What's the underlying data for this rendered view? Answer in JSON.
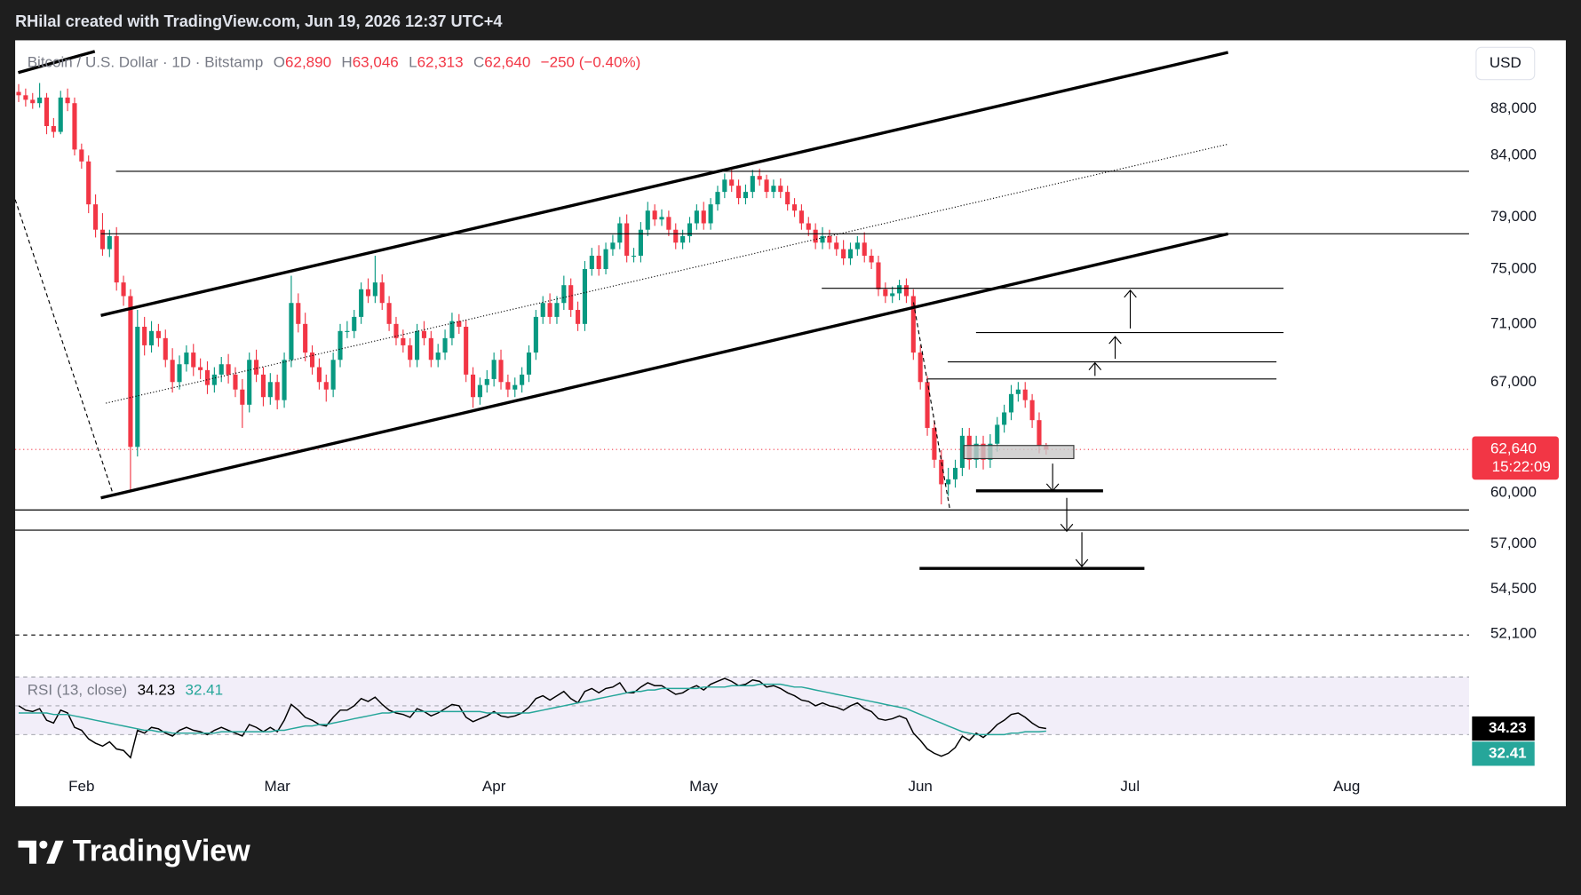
{
  "header": {
    "text": "RHilal created with TradingView.com, Jun 19, 2026 12:37 UTC+4"
  },
  "toolbar": {
    "currency": "USD"
  },
  "footer": {
    "brand": "TradingView"
  },
  "chart_data": [
    {
      "type": "candlestick",
      "title": "Bitcoin / U.S. Dollar · 1D · Bitstamp",
      "legend": [
        {
          "label": "O",
          "value": "62,890"
        },
        {
          "label": "H",
          "value": "63,046"
        },
        {
          "label": "L",
          "value": "62,313"
        },
        {
          "label": "C",
          "value": "62,640"
        }
      ],
      "change": "−250 (−0.40%)",
      "last_price_label": "62,640",
      "countdown": "15:22:09",
      "up_color": "#089981",
      "down_color": "#f23645",
      "log_scale": true,
      "xlim": [
        -0.5,
        207.5
      ],
      "xticks": [
        {
          "value": 9,
          "label": "Feb"
        },
        {
          "value": 37,
          "label": "Mar"
        },
        {
          "value": 68,
          "label": "Apr"
        },
        {
          "value": 98,
          "label": "May"
        },
        {
          "value": 129,
          "label": "Jun"
        },
        {
          "value": 159,
          "label": "Jul"
        },
        {
          "value": 190,
          "label": "Aug"
        }
      ],
      "ylim": [
        50760,
        94230
      ],
      "yticks": [
        {
          "value": 88000,
          "label": "88,000"
        },
        {
          "value": 84000,
          "label": "84,000"
        },
        {
          "value": 79000,
          "label": "79,000"
        },
        {
          "value": 75000,
          "label": "75,000"
        },
        {
          "value": 71000,
          "label": "71,000"
        },
        {
          "value": 67000,
          "label": "67,000"
        },
        {
          "value": 60000,
          "label": "60,000"
        },
        {
          "value": 57000,
          "label": "57,000"
        },
        {
          "value": 54500,
          "label": "54,500"
        },
        {
          "value": 52100,
          "label": "52,100"
        }
      ],
      "open": [
        89500,
        89200,
        88800,
        88500,
        89000,
        86500,
        86000,
        89000,
        88500,
        84500,
        83500,
        80000,
        78000,
        76500,
        77500,
        74000,
        73000,
        62800,
        70800,
        69500,
        70500,
        70000,
        68500,
        67000,
        68200,
        69000,
        68000,
        67800,
        66800,
        67500,
        68200,
        67500,
        66500,
        65500,
        68500,
        67500,
        66000,
        67000,
        65800,
        68500,
        72500,
        71000,
        69000,
        68000,
        67000,
        66500,
        68500,
        70500,
        70500,
        71500,
        73500,
        73000,
        74000,
        72500,
        71000,
        70000,
        69500,
        68500,
        70500,
        70000,
        68500,
        69000,
        70000,
        71200,
        70800,
        67500,
        66000,
        66800,
        67200,
        68500,
        67000,
        66500,
        66800,
        67500,
        69000,
        71500,
        72500,
        71500,
        72500,
        73800,
        72000,
        71000,
        75000,
        76000,
        75000,
        76500,
        77000,
        78500,
        76000,
        76000,
        78000,
        79500,
        78800,
        79000,
        78000,
        77000,
        77500,
        78500,
        79500,
        78500,
        80000,
        81000,
        82000,
        81500,
        80500,
        81000,
        82300,
        82000,
        81000,
        81500,
        81000,
        80000,
        79500,
        78500,
        78000,
        77000,
        77500,
        77000,
        76500,
        75800,
        76500,
        77000,
        76000,
        75500,
        73500,
        73000,
        73200,
        73800,
        73000,
        69000,
        67000,
        64000,
        62000,
        60500,
        60800,
        61500,
        63500,
        62000,
        63000,
        62000,
        63000,
        64200,
        65000,
        66200,
        66500,
        65800,
        64500,
        62890
      ],
      "high": [
        90200,
        89800,
        89400,
        90300,
        89400,
        87200,
        89600,
        89800,
        89000,
        85000,
        84000,
        80800,
        79300,
        78000,
        78200,
        74500,
        73500,
        72000,
        71500,
        71200,
        71000,
        70600,
        69300,
        68800,
        69500,
        69600,
        68600,
        68400,
        68000,
        68700,
        68900,
        68000,
        67200,
        69000,
        69200,
        68000,
        67600,
        67500,
        69000,
        74500,
        73200,
        71800,
        69500,
        68600,
        67500,
        69000,
        71000,
        71200,
        72000,
        74000,
        74300,
        76000,
        74600,
        73000,
        71500,
        70600,
        70000,
        71000,
        71200,
        70500,
        69600,
        70600,
        71800,
        71700,
        71300,
        68000,
        67300,
        67800,
        69000,
        69200,
        67500,
        67300,
        68000,
        69500,
        72000,
        73000,
        73200,
        73000,
        74500,
        74300,
        72600,
        75600,
        76600,
        76800,
        77000,
        77600,
        79000,
        79200,
        76600,
        78600,
        80200,
        80000,
        79600,
        79500,
        78500,
        78000,
        79000,
        80000,
        80200,
        80500,
        81500,
        82500,
        83000,
        82000,
        81600,
        82800,
        82900,
        82400,
        82000,
        82100,
        81500,
        80500,
        80000,
        79000,
        78500,
        78200,
        78000,
        77500,
        77200,
        77000,
        77500,
        77800,
        76500,
        76000,
        74000,
        73700,
        74200,
        74300,
        73500,
        69500,
        67400,
        64500,
        62600,
        61500,
        62000,
        64000,
        64000,
        63500,
        63500,
        63600,
        64700,
        65500,
        66800,
        67000,
        67000,
        66200,
        65000,
        63046
      ],
      "low": [
        88600,
        88200,
        88000,
        88100,
        85800,
        85500,
        85800,
        87800,
        84000,
        82900,
        79300,
        77400,
        76000,
        75900,
        73400,
        72300,
        60100,
        62200,
        68800,
        69000,
        69400,
        68000,
        66300,
        66500,
        67700,
        67400,
        67200,
        66200,
        66300,
        67000,
        66900,
        66000,
        64000,
        65000,
        67000,
        65400,
        65500,
        65200,
        65300,
        68000,
        70400,
        68400,
        67500,
        66500,
        65700,
        66000,
        68000,
        70000,
        70000,
        71000,
        72500,
        72500,
        72000,
        70500,
        69500,
        69000,
        68000,
        68000,
        69500,
        68000,
        68000,
        68500,
        69500,
        70300,
        67000,
        65300,
        65500,
        66300,
        66700,
        66500,
        66000,
        66000,
        66300,
        67000,
        68500,
        71000,
        71000,
        71000,
        72000,
        71500,
        70500,
        70500,
        74500,
        74500,
        74600,
        76000,
        76500,
        75500,
        75500,
        75500,
        77500,
        78300,
        78300,
        77500,
        76500,
        76500,
        77000,
        78000,
        78000,
        78000,
        79500,
        80500,
        81000,
        80000,
        80000,
        80500,
        81500,
        80500,
        80500,
        80500,
        79500,
        79000,
        78000,
        77500,
        76500,
        76500,
        76500,
        76000,
        75300,
        75300,
        76000,
        75500,
        75000,
        73000,
        72500,
        72500,
        72700,
        72500,
        68500,
        66500,
        63500,
        61500,
        59300,
        59800,
        60300,
        61000,
        61400,
        61500,
        61400,
        61500,
        62500,
        63700,
        64500,
        65700,
        65300,
        64000,
        62400,
        62313
      ],
      "close": [
        89200,
        88800,
        88500,
        89000,
        86500,
        86000,
        89000,
        88500,
        84500,
        83500,
        80000,
        78000,
        76500,
        77500,
        74000,
        73000,
        62800,
        70800,
        69500,
        70500,
        70000,
        68500,
        67000,
        68200,
        69000,
        68000,
        67800,
        66800,
        67500,
        68200,
        67500,
        66500,
        65500,
        68500,
        67500,
        66000,
        67000,
        65800,
        68500,
        72500,
        71000,
        69000,
        68000,
        67000,
        66500,
        68500,
        70500,
        70500,
        71500,
        73500,
        73000,
        74000,
        72500,
        71000,
        70000,
        69500,
        68500,
        70500,
        70000,
        68500,
        69000,
        70000,
        71200,
        70800,
        67500,
        66000,
        66800,
        67200,
        68500,
        67000,
        66500,
        66800,
        67500,
        69000,
        71500,
        72500,
        71500,
        72500,
        73800,
        72000,
        71000,
        75000,
        76000,
        75000,
        76500,
        77000,
        78500,
        76000,
        76000,
        78000,
        79500,
        78800,
        79000,
        78000,
        77000,
        77500,
        78500,
        79500,
        78500,
        80000,
        81000,
        82000,
        81500,
        80500,
        81000,
        82300,
        82000,
        81000,
        81500,
        81000,
        80000,
        79500,
        78500,
        78000,
        77000,
        77500,
        77000,
        76500,
        75800,
        76500,
        77000,
        76000,
        75500,
        73500,
        73000,
        73200,
        73800,
        73000,
        69000,
        67000,
        64000,
        62000,
        60500,
        60800,
        61500,
        63500,
        62000,
        63000,
        62000,
        63000,
        64200,
        65000,
        66200,
        66500,
        65800,
        64500,
        62890,
        62640
      ]
    },
    {
      "type": "line",
      "title": "RSI (13, close)",
      "ylim": [
        4,
        81
      ],
      "bands": [
        70,
        50,
        30
      ],
      "band_color": "#7e57c2",
      "series": [
        {
          "color": "#000000",
          "values": [
            50,
            47,
            46,
            48,
            40,
            38,
            47,
            45,
            35,
            33,
            27,
            24,
            22,
            25,
            20,
            19,
            14,
            33,
            31,
            35,
            34,
            31,
            29,
            33,
            35,
            33,
            32,
            30,
            33,
            35,
            33,
            31,
            29,
            37,
            35,
            32,
            35,
            32,
            40,
            51,
            47,
            42,
            40,
            37,
            36,
            42,
            47,
            47,
            50,
            55,
            53,
            56,
            51,
            47,
            45,
            44,
            42,
            48,
            46,
            43,
            45,
            48,
            51,
            50,
            42,
            39,
            41,
            43,
            46,
            43,
            42,
            43,
            45,
            49,
            55,
            57,
            54,
            57,
            60,
            55,
            52,
            60,
            62,
            59,
            62,
            63,
            66,
            59,
            59,
            63,
            66,
            64,
            64,
            61,
            58,
            59,
            62,
            64,
            61,
            65,
            67,
            69,
            67,
            64,
            65,
            68,
            67,
            63,
            64,
            62,
            59,
            57,
            54,
            53,
            50,
            52,
            50,
            49,
            47,
            50,
            52,
            48,
            46,
            41,
            40,
            41,
            43,
            41,
            31,
            26,
            20,
            17,
            15,
            17,
            21,
            29,
            26,
            31,
            28,
            32,
            37,
            40,
            44,
            45,
            42,
            38,
            35,
            34.23
          ]
        },
        {
          "color": "#26a69a",
          "values": [
            45,
            45,
            45,
            45,
            45,
            44,
            44,
            44,
            43,
            42,
            41,
            40,
            39,
            38,
            37,
            36,
            35,
            34,
            33,
            33,
            32,
            32,
            31,
            31,
            31,
            31,
            31,
            31,
            31,
            32,
            32,
            32,
            32,
            32,
            32,
            32,
            32,
            33,
            33,
            34,
            35,
            36,
            36,
            37,
            37,
            38,
            39,
            40,
            41,
            42,
            43,
            44,
            45,
            45,
            46,
            46,
            46,
            46,
            46,
            46,
            46,
            46,
            46,
            46,
            46,
            46,
            46,
            45,
            45,
            45,
            45,
            45,
            45,
            45,
            46,
            47,
            48,
            49,
            50,
            51,
            52,
            53,
            54,
            55,
            56,
            57,
            58,
            59,
            60,
            60,
            61,
            61,
            62,
            62,
            62,
            62,
            62,
            62,
            63,
            63,
            63,
            63,
            64,
            64,
            64,
            64,
            65,
            65,
            65,
            65,
            64,
            63,
            63,
            62,
            61,
            60,
            59,
            58,
            57,
            56,
            55,
            54,
            53,
            52,
            51,
            50,
            49,
            48,
            46,
            44,
            42,
            40,
            38,
            36,
            34,
            32,
            31,
            30,
            30,
            30,
            30,
            30,
            31,
            31,
            32,
            32,
            32,
            32.41
          ]
        }
      ]
    }
  ]
}
